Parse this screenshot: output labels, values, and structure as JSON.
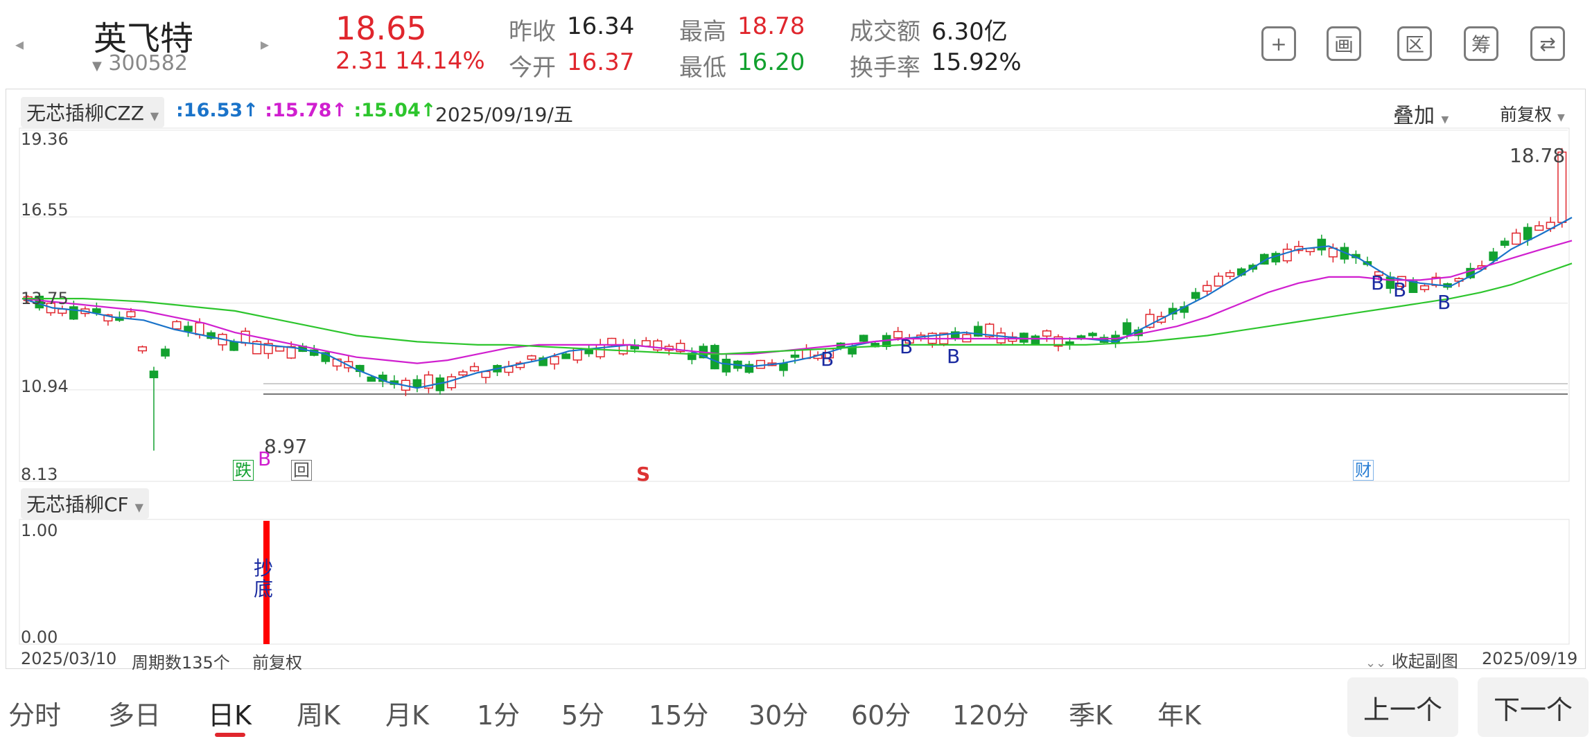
{
  "stock": {
    "name": "英飞特",
    "code": "300582",
    "price": "18.65",
    "change": "2.31",
    "change_pct": "14.14%",
    "stats": [
      {
        "label": "昨收",
        "value": "16.34",
        "color": "dark"
      },
      {
        "label": "今开",
        "value": "16.37",
        "color": "red"
      },
      {
        "label": "最高",
        "value": "18.78",
        "color": "red"
      },
      {
        "label": "最低",
        "value": "16.20",
        "color": "green"
      },
      {
        "label": "成交额",
        "value": "6.30亿",
        "color": "dark"
      },
      {
        "label": "换手率",
        "value": "15.92%",
        "color": "dark"
      }
    ]
  },
  "toolbar": {
    "buttons": [
      {
        "name": "add-icon",
        "glyph": "+"
      },
      {
        "name": "draw-icon",
        "glyph": "画"
      },
      {
        "name": "range-icon",
        "glyph": "区"
      },
      {
        "name": "chips-icon",
        "glyph": "筹"
      },
      {
        "name": "landscape-icon",
        "glyph": "⇄"
      }
    ]
  },
  "main_chart": {
    "indicator_name": "无芯插柳CZZ",
    "ma_values": [
      {
        "text": ":16.53↑",
        "color": "#1a73c9"
      },
      {
        "text": ":15.78↑",
        "color": "#d01fcf"
      },
      {
        "text": ":15.04↑",
        "color": "#2dc52d"
      }
    ],
    "date": "2025/09/19/五",
    "overlay_label": "叠加",
    "adjust_label": "前复权",
    "y_ticks": [
      "19.36",
      "16.55",
      "13.75",
      "10.94",
      "8.13"
    ],
    "high_label": "18.78",
    "low_label": "8.97",
    "markers": {
      "die": "跌",
      "hui": "回",
      "s": "S",
      "cai": "财",
      "b": "B"
    }
  },
  "sub_chart": {
    "indicator_name": "无芯插柳CF",
    "y_ticks": [
      "1.00",
      "0.00"
    ],
    "signal_text": "抄底"
  },
  "footer": {
    "start_date": "2025/03/10",
    "period_count": "周期数135个",
    "adjust": "前复权",
    "collapse": "收起副图",
    "end_date": "2025/09/19"
  },
  "period_tabs": [
    "分时",
    "多日",
    "日K",
    "周K",
    "月K",
    "1分",
    "5分",
    "15分",
    "30分",
    "60分",
    "120分",
    "季K",
    "年K"
  ],
  "active_tab": "日K",
  "nav": {
    "prev": "上一个",
    "next": "下一个"
  },
  "colors": {
    "up": "#e0262d",
    "down": "#12a12f",
    "ma5": "#1a73c9",
    "ma10": "#d01fcf",
    "ma20": "#2dc52d"
  },
  "chart_data": {
    "type": "candlestick",
    "ylim": [
      8.13,
      19.36
    ],
    "series": [
      {
        "name": "MA1",
        "values": [
          13.9,
          13.6,
          13.5,
          13.3,
          13.2,
          12.9,
          12.7,
          12.5,
          12.4,
          12.3,
          12.1,
          11.6,
          11.2,
          11.0,
          11.2,
          11.5,
          11.7,
          11.9,
          12.2,
          12.3,
          12.4,
          12.3,
          12.2,
          11.8,
          11.7,
          11.8,
          12.0,
          12.3,
          12.5,
          12.6,
          12.7,
          12.8,
          12.7,
          12.6,
          12.6,
          12.6,
          12.5,
          13.0,
          13.5,
          14.0,
          14.6,
          15.2,
          15.5,
          15.6,
          15.2,
          14.6,
          14.4,
          14.3,
          14.8,
          15.5,
          16.0,
          16.53
        ]
      },
      {
        "name": "MA2",
        "values": [
          13.9,
          13.8,
          13.7,
          13.6,
          13.5,
          13.3,
          13.1,
          12.8,
          12.6,
          12.4,
          12.2,
          12.0,
          11.9,
          11.8,
          11.9,
          12.1,
          12.3,
          12.4,
          12.4,
          12.4,
          12.4,
          12.3,
          12.2,
          12.1,
          12.1,
          12.2,
          12.3,
          12.4,
          12.5,
          12.6,
          12.6,
          12.6,
          12.6,
          12.6,
          12.6,
          12.6,
          12.6,
          12.8,
          13.0,
          13.3,
          13.7,
          14.1,
          14.4,
          14.6,
          14.6,
          14.5,
          14.5,
          14.6,
          14.9,
          15.2,
          15.5,
          15.78
        ]
      },
      {
        "name": "MA3",
        "values": [
          13.9,
          13.9,
          13.9,
          13.85,
          13.8,
          13.7,
          13.6,
          13.5,
          13.3,
          13.1,
          12.9,
          12.7,
          12.6,
          12.5,
          12.45,
          12.4,
          12.4,
          12.35,
          12.3,
          12.25,
          12.2,
          12.15,
          12.1,
          12.1,
          12.15,
          12.2,
          12.25,
          12.3,
          12.35,
          12.4,
          12.4,
          12.4,
          12.4,
          12.4,
          12.4,
          12.4,
          12.45,
          12.5,
          12.6,
          12.7,
          12.85,
          13.0,
          13.15,
          13.3,
          13.45,
          13.6,
          13.75,
          13.9,
          14.1,
          14.35,
          14.7,
          15.04
        ]
      }
    ]
  }
}
